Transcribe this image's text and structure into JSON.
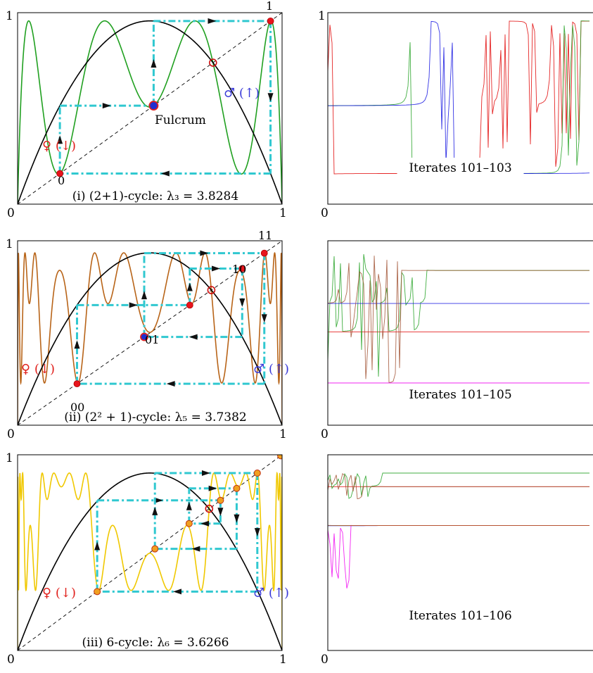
{
  "colors": {
    "parabola": "#000000",
    "diagonal": "#000000",
    "cobweb": "#30c8d0",
    "female": "#e0201c",
    "male": "#3a3ad8",
    "fixed_point_ring": "#d01010",
    "cycle_point_red": "#e8141c",
    "cycle_point_orange": "#f0a020",
    "fulcrum_fill": "#2030d0",
    "curve_i": "#20a020",
    "curve_ii": "#b86418",
    "curve_iii": "#f0c800",
    "iterate_colors": [
      "#e00000",
      "#20a020",
      "#1010e0",
      "#a05030",
      "#f000f0",
      "#b06010"
    ]
  },
  "chart_data": [
    {
      "id": "i",
      "type": "line",
      "title": "(i) (2+1)-cycle: λ₃ = 3.8284",
      "lambda": 3.8284,
      "iterate_count": 3,
      "xlim": [
        0,
        1
      ],
      "ylim": [
        0,
        1
      ],
      "tick_labels": {
        "x0": "0",
        "x1": "1",
        "y1": "1"
      },
      "curve": "third iterate f³(x) with f(x) = λx(1−x)",
      "cycle_x": [
        0.1599,
        0.5144,
        0.9563
      ],
      "cycle_labels": [
        "0",
        "1"
      ],
      "female_label": "♀ (↓)",
      "male_label": "♂ (↑)",
      "annotation": "Fulcrum"
    },
    {
      "id": "ii",
      "type": "line",
      "title": "(ii) (2² + 1)-cycle: λ₅ = 3.7382",
      "lambda": 3.7382,
      "iterate_count": 5,
      "xlim": [
        0,
        1
      ],
      "ylim": [
        0,
        1
      ],
      "tick_labels": {
        "x0": "0",
        "x1": "1",
        "y1": "1"
      },
      "curve": "fifth iterate f⁵(x) with f(x) = λx(1−x)",
      "cycle_x": [
        0.2247,
        0.6511,
        0.8492,
        0.4787,
        0.9328
      ],
      "cycle_labels": [
        "00",
        "01",
        "10",
        "11"
      ],
      "female_label": "♀ (↓)",
      "male_label": "♂ (↑)"
    },
    {
      "id": "iii",
      "type": "line",
      "title": "(iii) 6-cycle: λ₆ = 3.6266",
      "lambda": 3.6266,
      "iterate_count": 6,
      "xlim": [
        0,
        1
      ],
      "ylim": [
        0,
        1
      ],
      "tick_labels": {
        "x0": "0",
        "x1": "1",
        "y1": "1"
      },
      "curve": "sixth iterate f⁶(x) with f(x) = λx(1−x)",
      "cycle_x": [
        0.3009,
        0.767,
        0.6485,
        0.8283,
        0.5192,
        0.9064
      ],
      "female_label": "♀ (↓)",
      "male_label": "♂ (↑)"
    },
    {
      "id": "ts-i",
      "type": "line",
      "caption": "Iterates 101–103",
      "lambda": 3.8284,
      "iterate_count": 3,
      "tick_labels": {
        "x0": "0",
        "y1": "1"
      }
    },
    {
      "id": "ts-ii",
      "type": "line",
      "caption": "Iterates 101–105",
      "lambda": 3.7382,
      "iterate_count": 5,
      "tick_labels": {
        "x0": "0"
      }
    },
    {
      "id": "ts-iii",
      "type": "line",
      "caption": "Iterates 101–106",
      "lambda": 3.6266,
      "iterate_count": 6,
      "tick_labels": {
        "x0": "0"
      }
    }
  ]
}
